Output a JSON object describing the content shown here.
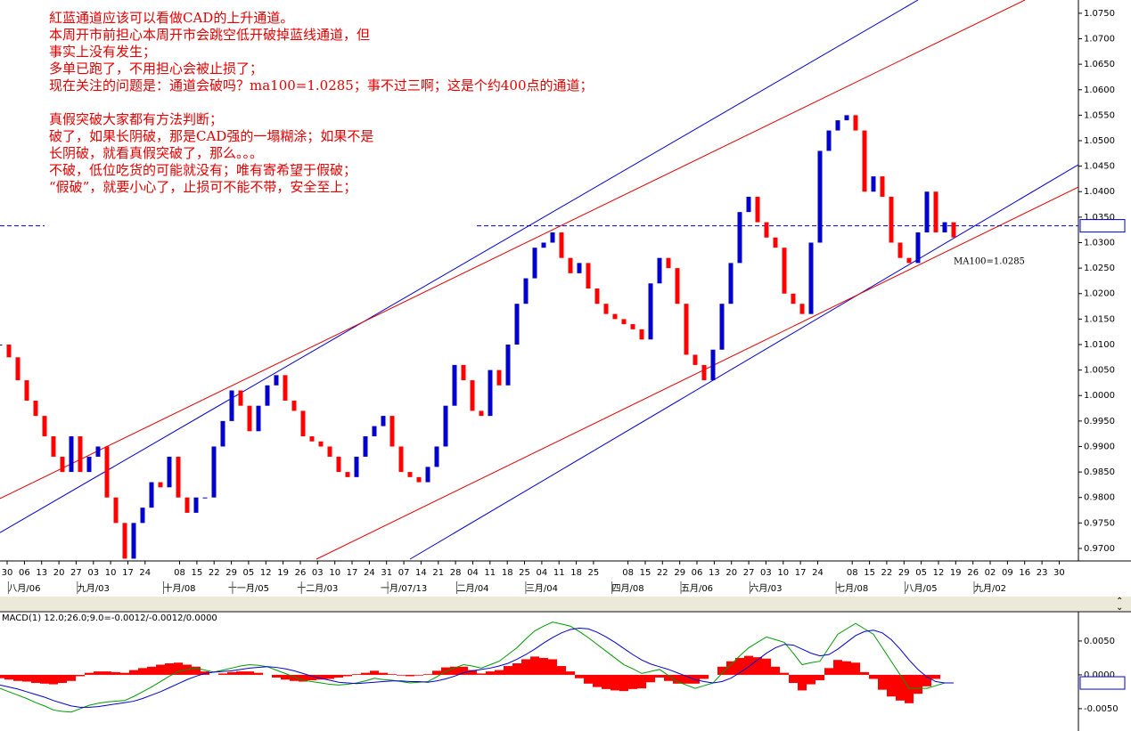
{
  "chart_data": [
    {
      "type": "candlestick",
      "annotations": [
        "紅蓝通道应该可以看做CAD的上升通道。",
        "本周开市前担心本周开市会跳空低开破掉蓝线通道，但",
        "事实上没有发生；",
        "多单已跑了，不用担心会被止损了；",
        "现在关注的问题是：通道会破吗？ma100=1.0285；事不过三啊；这是个约400点的通道；",
        "真假突破大家都有方法判断；",
        "破了，如果长阴破，那是CAD强的一塌糊涂；如果不是",
        "长阴破，就看真假突破了，那么。。。",
        "不破，低位吃货的可能就没有；唯有寄希望于假破；",
        "“假破”，就要小心了，止损可不能不带，安全至上；"
      ],
      "values": [
        1.01,
        1.0075,
        1.003,
        0.999,
        0.996,
        0.992,
        0.988,
        0.985,
        0.992,
        0.985,
        0.988,
        0.99,
        0.98,
        0.975,
        0.968,
        0.975,
        0.978,
        0.983,
        0.982,
        0.988,
        0.98,
        0.977,
        0.98,
        0.98,
        0.99,
        0.995,
        1.001,
        0.998,
        0.993,
        0.998,
        1.002,
        1.004,
        0.999,
        0.997,
        0.992,
        0.991,
        0.99,
        0.988,
        0.985,
        0.984,
        0.988,
        0.992,
        0.994,
        0.996,
        0.99,
        0.985,
        0.984,
        0.983,
        0.986,
        0.99,
        0.998,
        1.006,
        1.003,
        0.997,
        0.996,
        1.005,
        1.002,
        1.01,
        1.018,
        1.023,
        1.029,
        1.03,
        1.032,
        1.027,
        1.024,
        1.026,
        1.021,
        1.018,
        1.016,
        1.015,
        1.014,
        1.013,
        1.011,
        1.022,
        1.027,
        1.025,
        1.018,
        1.008,
        1.006,
        1.003,
        1.009,
        1.018,
        1.026,
        1.036,
        1.039,
        1.034,
        1.031,
        1.029,
        1.02,
        1.018,
        1.016,
        1.03,
        1.048,
        1.052,
        1.054,
        1.055,
        1.052,
        1.04,
        1.043,
        1.039,
        1.03,
        1.027,
        1.026,
        1.032,
        1.04,
        1.032,
        1.034,
        1.031
      ],
      "up_color": "#0000cc",
      "down_color": "#ff0000",
      "xlim": [
        0,
        121
      ],
      "ylim": [
        0.9679,
        1.0776
      ],
      "yticks": [
        {
          "value": 0.97,
          "label": "0.9700"
        },
        {
          "value": 0.975,
          "label": "0.9750"
        },
        {
          "value": 0.98,
          "label": "0.9800"
        },
        {
          "value": 0.985,
          "label": "0.9850"
        },
        {
          "value": 0.99,
          "label": "0.9900"
        },
        {
          "value": 0.995,
          "label": "0.9950"
        },
        {
          "value": 1.0,
          "label": "1.0000"
        },
        {
          "value": 1.005,
          "label": "1.0050"
        },
        {
          "value": 1.01,
          "label": "1.0100"
        },
        {
          "value": 1.015,
          "label": "1.0150"
        },
        {
          "value": 1.02,
          "label": "1.0200"
        },
        {
          "value": 1.025,
          "label": "1.0250"
        },
        {
          "value": 1.03,
          "label": "1.0300"
        },
        {
          "value": 1.035,
          "label": "1.0350"
        },
        {
          "value": 1.04,
          "label": "1.0400"
        },
        {
          "value": 1.045,
          "label": "1.0450"
        },
        {
          "value": 1.05,
          "label": "1.0500"
        },
        {
          "value": 1.055,
          "label": "1.0550"
        },
        {
          "value": 1.06,
          "label": "1.0600"
        },
        {
          "value": 1.065,
          "label": "1.0650"
        },
        {
          "value": 1.07,
          "label": "1.0700"
        },
        {
          "value": 1.075,
          "label": "1.0750"
        }
      ],
      "xticks": [
        {
          "value": 0.8,
          "label": "30"
        },
        {
          "value": 2.74,
          "label": "06"
        },
        {
          "value": 4.67,
          "label": "13"
        },
        {
          "value": 6.61,
          "label": "20"
        },
        {
          "value": 8.54,
          "label": "27"
        },
        {
          "value": 10.48,
          "label": "03"
        },
        {
          "value": 12.41,
          "label": "10"
        },
        {
          "value": 14.35,
          "label": "17"
        },
        {
          "value": 16.28,
          "label": "24"
        },
        {
          "value": 20.15,
          "label": "08"
        },
        {
          "value": 22.09,
          "label": "15"
        },
        {
          "value": 24.02,
          "label": "22"
        },
        {
          "value": 25.96,
          "label": "29"
        },
        {
          "value": 27.89,
          "label": "05"
        },
        {
          "value": 29.83,
          "label": "12"
        },
        {
          "value": 31.76,
          "label": "19"
        },
        {
          "value": 33.7,
          "label": "26"
        },
        {
          "value": 35.63,
          "label": "03"
        },
        {
          "value": 37.57,
          "label": "10"
        },
        {
          "value": 39.5,
          "label": "17"
        },
        {
          "value": 41.44,
          "label": "24"
        },
        {
          "value": 43.37,
          "label": "31"
        },
        {
          "value": 45.31,
          "label": "07"
        },
        {
          "value": 47.24,
          "label": "14"
        },
        {
          "value": 49.18,
          "label": "21"
        },
        {
          "value": 51.11,
          "label": "28"
        },
        {
          "value": 53.05,
          "label": "04"
        },
        {
          "value": 54.98,
          "label": "11"
        },
        {
          "value": 56.92,
          "label": "18"
        },
        {
          "value": 58.85,
          "label": "25"
        },
        {
          "value": 60.79,
          "label": "04"
        },
        {
          "value": 62.72,
          "label": "11"
        },
        {
          "value": 64.66,
          "label": "18"
        },
        {
          "value": 66.59,
          "label": "25"
        },
        {
          "value": 70.46,
          "label": "08"
        },
        {
          "value": 72.4,
          "label": "15"
        },
        {
          "value": 74.33,
          "label": "22"
        },
        {
          "value": 76.27,
          "label": "29"
        },
        {
          "value": 78.2,
          "label": "06"
        },
        {
          "value": 80.14,
          "label": "13"
        },
        {
          "value": 82.07,
          "label": "20"
        },
        {
          "value": 84.01,
          "label": "27"
        },
        {
          "value": 85.94,
          "label": "03"
        },
        {
          "value": 87.88,
          "label": "10"
        },
        {
          "value": 89.81,
          "label": "17"
        },
        {
          "value": 91.75,
          "label": "24"
        },
        {
          "value": 95.62,
          "label": "08"
        },
        {
          "value": 97.56,
          "label": "15"
        },
        {
          "value": 99.49,
          "label": "22"
        },
        {
          "value": 101.43,
          "label": "29"
        },
        {
          "value": 103.36,
          "label": "05"
        },
        {
          "value": 105.3,
          "label": "12"
        },
        {
          "value": 107.23,
          "label": "19"
        },
        {
          "value": 109.17,
          "label": "26"
        },
        {
          "value": 111.1,
          "label": "02"
        },
        {
          "value": 113.04,
          "label": "09"
        },
        {
          "value": 114.97,
          "label": "16"
        },
        {
          "value": 116.91,
          "label": "23"
        },
        {
          "value": 118.84,
          "label": "30"
        }
      ],
      "month_ticks": [
        {
          "value": 2.74,
          "label": "八月/06"
        },
        {
          "value": 10.48,
          "label": "九月/03"
        },
        {
          "value": 20.15,
          "label": "十月/08"
        },
        {
          "value": 27.89,
          "label": "十一月/05"
        },
        {
          "value": 35.63,
          "label": "十二月/03"
        },
        {
          "value": 45.31,
          "label": "一月/07/13"
        },
        {
          "value": 53.05,
          "label": "二月/04"
        },
        {
          "value": 60.79,
          "label": "三月/04"
        },
        {
          "value": 70.46,
          "label": "四月/08"
        },
        {
          "value": 78.2,
          "label": "五月/06"
        },
        {
          "value": 85.94,
          "label": "六月/03"
        },
        {
          "value": 95.62,
          "label": "七月/08"
        },
        {
          "value": 103.36,
          "label": "八月/05"
        },
        {
          "value": 111.1,
          "label": "九月/02"
        }
      ],
      "trendlines": [
        {
          "color": "#0000cc",
          "x": [
            0,
            103
          ],
          "values": [
            0.9731,
            1.0776
          ]
        },
        {
          "color": "#0000cc",
          "x": [
            46,
            121
          ],
          "values": [
            0.9679,
            1.0453
          ]
        },
        {
          "color": "#dd0000",
          "x": [
            0,
            115
          ],
          "values": [
            0.9798,
            1.0776
          ]
        },
        {
          "color": "#dd0000",
          "x": [
            35.5,
            121
          ],
          "values": [
            0.9679,
            1.0409
          ]
        }
      ],
      "reference_line": {
        "value": 1.0333,
        "color": "#0000cc"
      },
      "ma100_label": "MA100=1.0285",
      "ma100_color": "#22aa44"
    },
    {
      "type": "macd",
      "title": "MACD(1) 12.0;26.0;9.0=-0.0012/-0.0012/0.0000",
      "xlim": [
        0,
        121
      ],
      "ylim": [
        -0.0083,
        0.0092
      ],
      "yticks": [
        {
          "value": 0.005,
          "label": "0.0050"
        },
        {
          "value": 0,
          "label": "0.0000"
        },
        {
          "value": -0.005,
          "label": "-0.0050"
        }
      ],
      "histogram": {
        "color": "#ff0000",
        "values": [
          -0.0005,
          -0.0007,
          -0.0009,
          -0.001,
          -0.0012,
          -0.0013,
          -0.0014,
          -0.0012,
          -0.0009,
          -0.0002,
          0.0003,
          0.0005,
          0.0005,
          0.0004,
          0.0003,
          0.0007,
          0.001,
          0.0012,
          0.0015,
          0.0017,
          0.0018,
          0.0015,
          0.0012,
          0.0005,
          0.0,
          0.0002,
          0.0004,
          0.0005,
          0.0005,
          0.0003,
          0.0,
          -0.0004,
          -0.0007,
          -0.0009,
          -0.001,
          -0.0008,
          -0.0007,
          -0.0006,
          -0.0004,
          -0.0002,
          0.0001,
          0.0003,
          0.0006,
          0.0003,
          0.0001,
          -0.0001,
          -0.0002,
          -0.0001,
          0.0001,
          0.0006,
          0.0011,
          0.0012,
          0.0012,
          0.0007,
          0.0002,
          0.0005,
          0.0007,
          0.0013,
          0.0017,
          0.0023,
          0.0027,
          0.0025,
          0.0023,
          0.0013,
          0.0005,
          -0.0005,
          -0.0013,
          -0.0018,
          -0.0021,
          -0.0023,
          -0.0024,
          -0.0021,
          -0.002,
          -0.0011,
          -0.0004,
          -0.0009,
          -0.0013,
          -0.0013,
          -0.0013,
          -0.0006,
          0.0,
          0.0012,
          0.002,
          0.0025,
          0.0028,
          0.0026,
          0.0024,
          0.0012,
          0.0003,
          -0.0012,
          -0.0023,
          -0.0014,
          -0.0008,
          0.001,
          0.0022,
          0.002,
          0.0018,
          0.0004,
          -0.0006,
          -0.0022,
          -0.0032,
          -0.0038,
          -0.0042,
          -0.0028,
          -0.0017,
          -0.0006,
          0.0,
          0.0
        ]
      },
      "macd": {
        "color": "#009900",
        "values": [
          -0.002,
          -0.0025,
          -0.003,
          -0.0035,
          -0.0041,
          -0.0046,
          -0.0052,
          -0.0054,
          -0.0055,
          -0.005,
          -0.0045,
          -0.0042,
          -0.004,
          -0.0039,
          -0.0038,
          -0.0032,
          -0.0025,
          -0.0018,
          -0.001,
          -0.0002,
          0.0005,
          0.0008,
          0.001,
          0.0007,
          0.0004,
          0.0007,
          0.001,
          0.0013,
          0.0015,
          0.0014,
          0.0012,
          0.0007,
          0.0002,
          -0.0003,
          -0.0008,
          -0.001,
          -0.0012,
          -0.0014,
          -0.0015,
          -0.0014,
          -0.0012,
          -0.0009,
          -0.0005,
          -0.0007,
          -0.0008,
          -0.001,
          -0.0012,
          -0.0011,
          -0.001,
          -0.0003,
          0.0005,
          0.001,
          0.0015,
          0.0013,
          0.001,
          0.0015,
          0.002,
          0.003,
          0.004,
          0.0053,
          0.0065,
          0.0072,
          0.0078,
          0.0075,
          0.0072,
          0.0064,
          0.0055,
          0.0045,
          0.0035,
          0.0025,
          0.0015,
          0.0009,
          0.0002,
          0.0005,
          0.0008,
          -0.0001,
          -0.001,
          -0.0015,
          -0.002,
          -0.0016,
          -0.0012,
          0.0002,
          0.0015,
          0.0028,
          0.004,
          0.0048,
          0.0056,
          0.0052,
          0.0048,
          0.0032,
          0.0015,
          0.0018,
          0.002,
          0.004,
          0.006,
          0.0068,
          0.0076,
          0.0068,
          0.006,
          0.004,
          0.002,
          0.0,
          -0.002,
          -0.002,
          -0.002,
          -0.0016,
          -0.0012,
          -0.0012
        ]
      },
      "signal": {
        "color": "#0000cc",
        "values": [
          -0.0015,
          -0.0018,
          -0.0021,
          -0.0025,
          -0.0029,
          -0.0033,
          -0.0038,
          -0.0042,
          -0.0046,
          -0.0048,
          -0.0048,
          -0.0047,
          -0.0045,
          -0.0043,
          -0.0041,
          -0.0039,
          -0.0035,
          -0.003,
          -0.0025,
          -0.0019,
          -0.0013,
          -0.0007,
          -0.0002,
          0.0002,
          0.0004,
          0.0005,
          0.0006,
          0.0008,
          0.001,
          0.0011,
          0.0012,
          0.0011,
          0.0009,
          0.0006,
          0.0002,
          -0.0002,
          -0.0005,
          -0.0008,
          -0.0011,
          -0.0012,
          -0.0013,
          -0.0012,
          -0.0011,
          -0.001,
          -0.0009,
          -0.0009,
          -0.001,
          -0.001,
          -0.0011,
          -0.0009,
          -0.0006,
          -0.0002,
          0.0003,
          0.0006,
          0.0008,
          0.001,
          0.0013,
          0.0017,
          0.0023,
          0.003,
          0.0038,
          0.0047,
          0.0055,
          0.0062,
          0.0067,
          0.0069,
          0.0068,
          0.0063,
          0.0056,
          0.0048,
          0.0039,
          0.003,
          0.0022,
          0.0016,
          0.0012,
          0.0008,
          0.0003,
          -0.0002,
          -0.0007,
          -0.001,
          -0.0012,
          -0.001,
          -0.0005,
          0.0003,
          0.0012,
          0.0022,
          0.0032,
          0.004,
          0.0045,
          0.0044,
          0.0038,
          0.0032,
          0.0028,
          0.003,
          0.0038,
          0.0048,
          0.0058,
          0.0064,
          0.0066,
          0.0062,
          0.0052,
          0.0038,
          0.0022,
          0.0008,
          -0.0003,
          -0.001,
          -0.0012,
          -0.0012
        ]
      },
      "last_value": -0.0012,
      "last_value_color": "#ff0000"
    }
  ]
}
